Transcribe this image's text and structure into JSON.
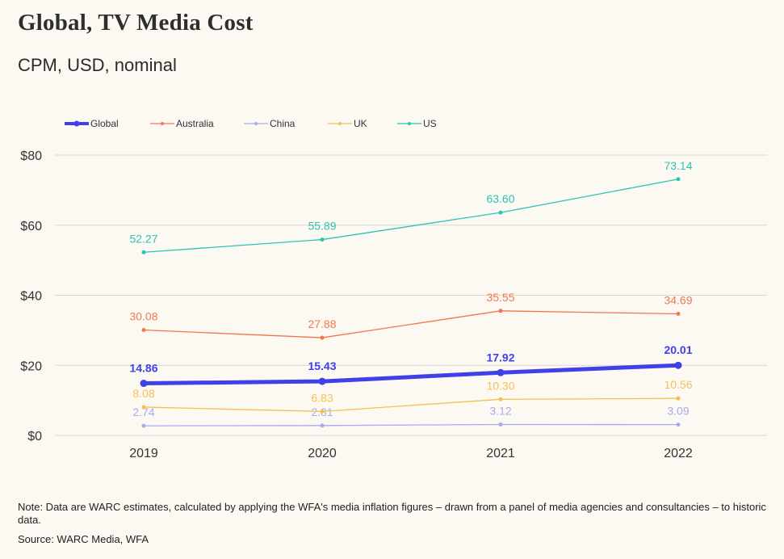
{
  "title": "Global, TV Media Cost",
  "subtitle": "CPM, USD, nominal",
  "note": "Note: Data are WARC estimates, calculated by applying the WFA's media inflation figures – drawn from a panel of media agencies and consultancies – to historic data.",
  "source": "Source: WARC Media, WFA",
  "chart_data": {
    "type": "line",
    "title": "Global, TV Media Cost",
    "subtitle": "CPM, USD, nominal",
    "xlabel": "",
    "ylabel": "",
    "categories": [
      "2019",
      "2020",
      "2021",
      "2022"
    ],
    "ylim": [
      0,
      80
    ],
    "yticks": [
      0,
      20,
      40,
      60,
      80
    ],
    "ytick_labels": [
      "$0",
      "$20",
      "$40",
      "$60",
      "$80"
    ],
    "grid": true,
    "legend_position": "top-left",
    "series": [
      {
        "name": "Global",
        "color": "#4040e8",
        "emphasis": true,
        "values": [
          14.86,
          15.43,
          17.92,
          20.01
        ],
        "labels": [
          "14.86",
          "15.43",
          "17.92",
          "20.01"
        ]
      },
      {
        "name": "Australia",
        "color": "#f07850",
        "values": [
          30.08,
          27.88,
          35.55,
          34.69
        ],
        "labels": [
          "30.08",
          "27.88",
          "35.55",
          "34.69"
        ]
      },
      {
        "name": "China",
        "color": "#a8aaf0",
        "values": [
          2.74,
          2.81,
          3.12,
          3.09
        ],
        "labels": [
          "2.74",
          "2.81",
          "3.12",
          "3.09"
        ]
      },
      {
        "name": "UK",
        "color": "#f3c056",
        "values": [
          8.08,
          6.83,
          10.3,
          10.56
        ],
        "labels": [
          "8.08",
          "6.83",
          "10.30",
          "10.56"
        ]
      },
      {
        "name": "US",
        "color": "#2cc4b4",
        "values": [
          52.27,
          55.89,
          63.6,
          73.14
        ],
        "labels": [
          "52.27",
          "55.89",
          "63.60",
          "73.14"
        ]
      }
    ]
  }
}
